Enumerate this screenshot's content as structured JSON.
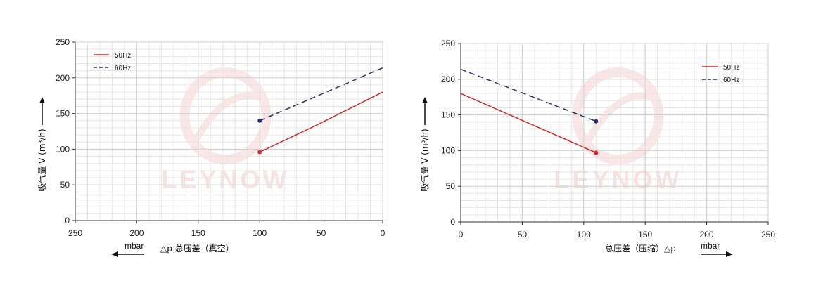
{
  "chart_data": [
    {
      "type": "line",
      "x_axis": {
        "range": [
          250,
          0
        ],
        "ticks": [
          250,
          200,
          150,
          100,
          50,
          0
        ],
        "reversed": true,
        "label": "△p 总压差（真空）",
        "unit": "mbar",
        "arrow": "left"
      },
      "y_axis": {
        "range": [
          0,
          250
        ],
        "ticks": [
          0,
          50,
          100,
          150,
          200,
          250
        ],
        "label": "吸气量 V (m³/h)"
      },
      "grid": true,
      "legend_position": "top-left",
      "watermark": "LEYNOW",
      "series": [
        {
          "name": "50Hz",
          "color": "#d42a2a",
          "dash": "solid",
          "points": [
            [
              100,
              96
            ],
            [
              57,
              131
            ],
            [
              0,
              180
            ]
          ]
        },
        {
          "name": "60Hz",
          "color": "#2a2f6e",
          "dash": "dashed",
          "points": [
            [
              100,
              140
            ],
            [
              0,
              214
            ]
          ]
        }
      ]
    },
    {
      "type": "line",
      "x_axis": {
        "range": [
          0,
          250
        ],
        "ticks": [
          0,
          50,
          100,
          150,
          200,
          250
        ],
        "reversed": false,
        "label": "总压差（压缩）△p",
        "unit": "mbar",
        "arrow": "right"
      },
      "y_axis": {
        "range": [
          0,
          250
        ],
        "ticks": [
          0,
          50,
          100,
          150,
          200,
          250
        ],
        "label": "吸气量 V (m³/h)"
      },
      "grid": true,
      "legend_position": "top-right",
      "watermark": "LEYNOW",
      "series": [
        {
          "name": "50Hz",
          "color": "#d42a2a",
          "dash": "solid",
          "points": [
            [
              0,
              180
            ],
            [
              110,
              97
            ]
          ]
        },
        {
          "name": "60Hz",
          "color": "#2a2f6e",
          "dash": "dashed",
          "points": [
            [
              0,
              214
            ],
            [
              110,
              141
            ]
          ]
        }
      ]
    }
  ]
}
